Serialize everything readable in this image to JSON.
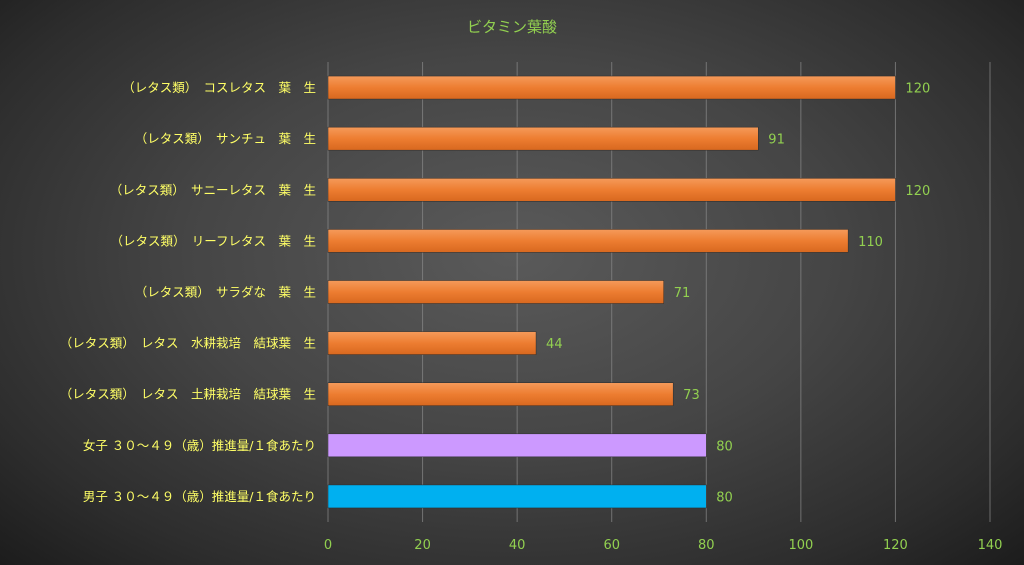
{
  "chart_data": {
    "type": "bar",
    "orientation": "horizontal",
    "title": "ビタミン葉酸",
    "xlabel": "",
    "ylabel": "",
    "xlim": [
      0,
      140
    ],
    "x_ticks": [
      0,
      20,
      40,
      60,
      80,
      100,
      120,
      140
    ],
    "grid": "vertical",
    "legend": "none",
    "categories": [
      "（レタス類）　コスレタス　葉　生",
      "（レタス類）　サンチュ　葉　生",
      "（レタス類）　サニーレタス　葉　生",
      "（レタス類）　リーフレタス　葉　生",
      "（レタス類）　サラダな　葉　生",
      "（レタス類）　レタス　水耕栽培　結球葉　生",
      "（レタス類）　レタス　土耕栽培　結球葉　生",
      "女子 ３０～４９（歳）推進量/１食あたり",
      "男子 ３０～４９（歳）推進量/１食あたり"
    ],
    "values": [
      120,
      91,
      120,
      110,
      71,
      44,
      73,
      80,
      80
    ],
    "bar_colors": [
      "#ed7d31",
      "#ed7d31",
      "#ed7d31",
      "#ed7d31",
      "#ed7d31",
      "#ed7d31",
      "#ed7d31",
      "#cc99ff",
      "#00b0f0"
    ]
  },
  "colors": {
    "title": "#92d050",
    "category_label": "#ffff66",
    "tick_label": "#92d050",
    "data_label": "#92d050",
    "gridline": "#8a8a8a"
  }
}
